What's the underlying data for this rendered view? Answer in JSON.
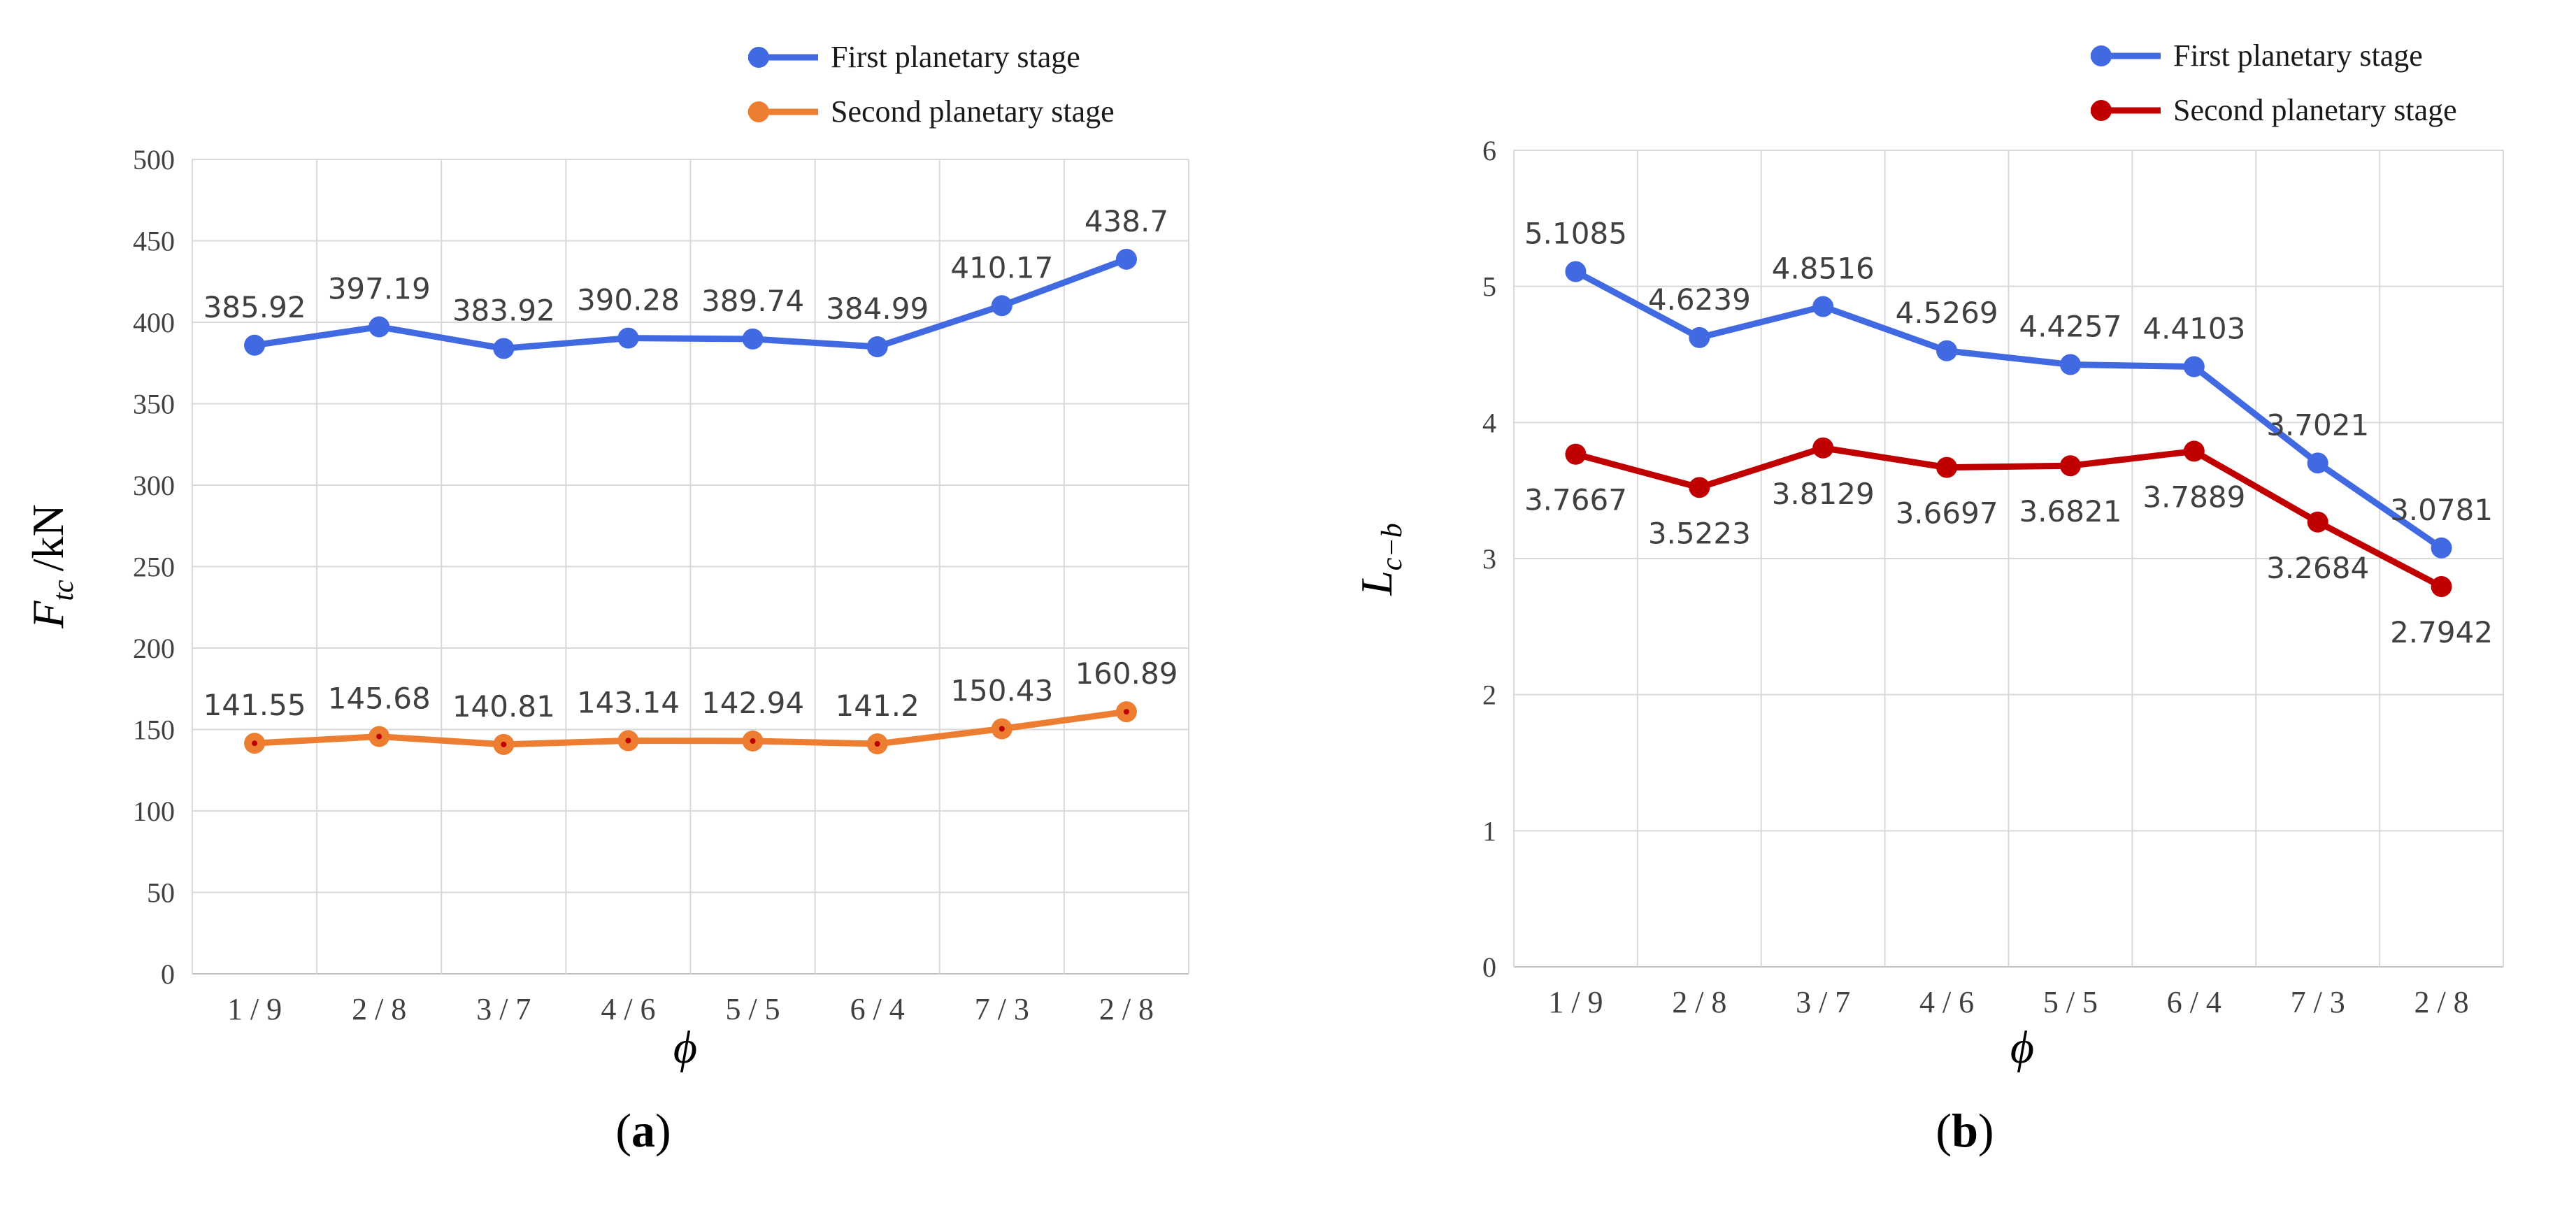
{
  "chart_data": [
    {
      "type": "line",
      "panel_label": "a",
      "categories": [
        "1 / 9",
        "2 / 8",
        "3 / 7",
        "4 / 6",
        "5 / 5",
        "6 / 4",
        "7 / 3",
        "2 / 8"
      ],
      "xlabel": "ϕ",
      "ylabel": {
        "symbol": "F",
        "subscript": "tc",
        "unit": "/kN"
      },
      "ylim": [
        0,
        500
      ],
      "yticks": [
        0,
        50,
        100,
        150,
        200,
        250,
        300,
        350,
        400,
        450,
        500
      ],
      "grid": true,
      "legend_position": "top-right",
      "series": [
        {
          "name": "First planetary stage",
          "color": "#4169e1",
          "values": [
            385.92,
            397.19,
            383.92,
            390.28,
            389.74,
            384.99,
            410.17,
            438.7
          ],
          "labels": [
            "385.92",
            "397.19",
            "383.92",
            "390.28",
            "389.74",
            "384.99",
            "410.17",
            "438.7"
          ]
        },
        {
          "name": "Second planetary stage",
          "color": "#ed7d31",
          "values": [
            141.55,
            145.68,
            140.81,
            143.14,
            142.94,
            141.2,
            150.43,
            160.89
          ],
          "labels": [
            "141.55",
            "145.68",
            "140.81",
            "143.14",
            "142.94",
            "141.2",
            "150.43",
            "160.89"
          ]
        }
      ]
    },
    {
      "type": "line",
      "panel_label": "b",
      "categories": [
        "1 / 9",
        "2 / 8",
        "3 / 7",
        "4 / 6",
        "5 / 5",
        "6 / 4",
        "7 / 3",
        "2 / 8"
      ],
      "xlabel": "ϕ",
      "ylabel": {
        "symbol": "L",
        "subscript": "c−b",
        "unit": ""
      },
      "ylim": [
        0,
        6
      ],
      "yticks": [
        0,
        1,
        2,
        3,
        4,
        5,
        6
      ],
      "grid": true,
      "legend_position": "top-right",
      "series": [
        {
          "name": "First planetary stage",
          "color": "#4169e1",
          "values": [
            5.1085,
            4.6239,
            4.8516,
            4.5269,
            4.4257,
            4.4103,
            3.7021,
            3.0781
          ],
          "labels": [
            "5.1085",
            "4.6239",
            "4.8516",
            "4.5269",
            "4.4257",
            "4.4103",
            "3.7021",
            "3.0781"
          ]
        },
        {
          "name": "Second planetary stage",
          "color": "#c00000",
          "values": [
            3.7667,
            3.5223,
            3.8129,
            3.6697,
            3.6821,
            3.7889,
            3.2684,
            2.7942
          ],
          "labels": [
            "3.7667",
            "3.5223",
            "3.8129",
            "3.6697",
            "3.6821",
            "3.7889",
            "3.2684",
            "2.7942"
          ]
        }
      ]
    }
  ]
}
